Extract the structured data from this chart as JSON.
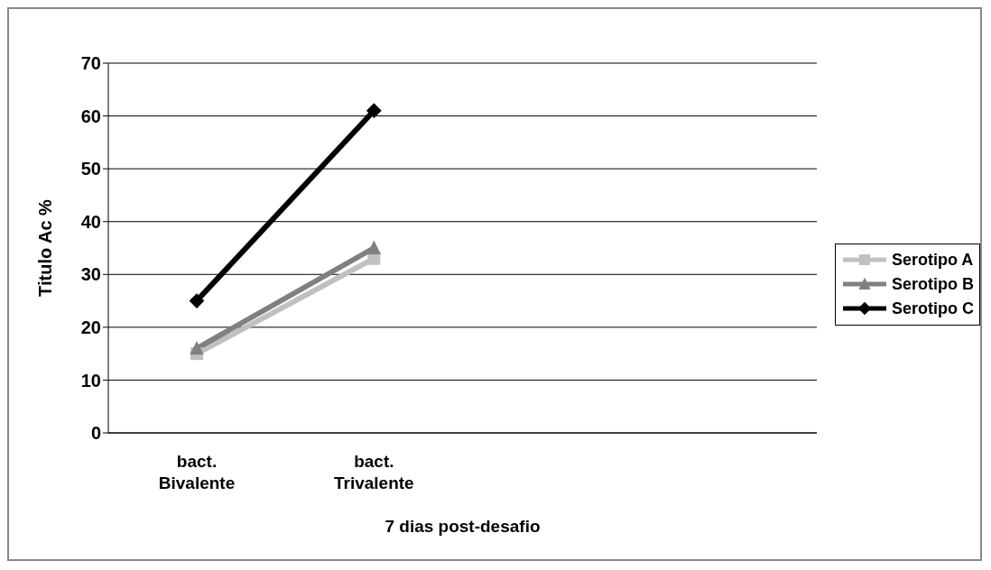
{
  "chart_data": {
    "type": "line",
    "xlabel": "7  dias post-desafio",
    "ylabel": "Titulo Ac %",
    "categories": [
      "bact. Bivalente",
      "bact. Trivalente",
      null,
      null
    ],
    "series": [
      {
        "name": "Serotipo A",
        "color": "#c0c0c0",
        "marker": "square",
        "values": [
          15,
          33,
          null,
          null
        ]
      },
      {
        "name": "Serotipo B",
        "color": "#808080",
        "marker": "triangle",
        "values": [
          16,
          35,
          null,
          null
        ]
      },
      {
        "name": "Serotipo C",
        "color": "#000000",
        "marker": "diamond",
        "values": [
          25,
          61,
          null,
          null
        ]
      }
    ],
    "ylim": [
      0,
      70
    ],
    "yticks": [
      0,
      10,
      20,
      30,
      40,
      50,
      60,
      70
    ],
    "grid": "y",
    "legend": "right"
  }
}
